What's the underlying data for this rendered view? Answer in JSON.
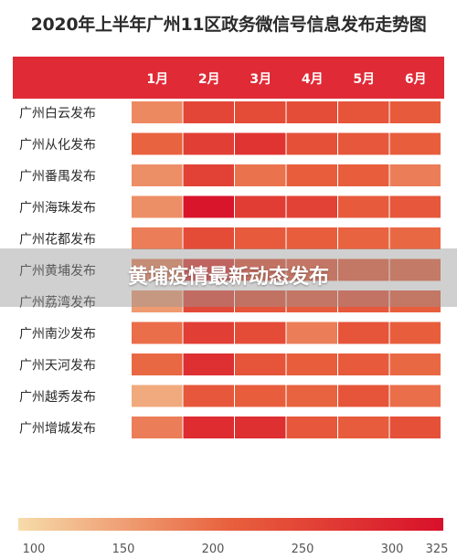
{
  "chart_data": {
    "type": "heatmap",
    "title": "2020年上半年广州11区政务微信号信息发布走势图",
    "columns": [
      "1月",
      "2月",
      "3月",
      "4月",
      "5月",
      "6月"
    ],
    "rows": [
      "广州白云发布",
      "广州从化发布",
      "广州番禺发布",
      "广州海珠发布",
      "广州花都发布",
      "广州黄埔发布",
      "广州荔湾发布",
      "广州南沙发布",
      "广州天河发布",
      "广州越秀发布",
      "广州增城发布"
    ],
    "values": [
      [
        175,
        250,
        240,
        238,
        230,
        220
      ],
      [
        210,
        260,
        275,
        235,
        225,
        215
      ],
      [
        170,
        255,
        195,
        215,
        215,
        185
      ],
      [
        170,
        318,
        262,
        255,
        220,
        225
      ],
      [
        185,
        240,
        220,
        215,
        210,
        205
      ],
      [
        180,
        265,
        230,
        220,
        215,
        210
      ],
      [
        160,
        245,
        230,
        220,
        225,
        215
      ],
      [
        200,
        260,
        240,
        185,
        230,
        215
      ],
      [
        205,
        280,
        230,
        215,
        220,
        205
      ],
      [
        145,
        225,
        215,
        210,
        230,
        200
      ],
      [
        185,
        285,
        282,
        225,
        218,
        235
      ]
    ],
    "color_scale": {
      "min": 100,
      "max": 325,
      "ticks": [
        100,
        150,
        200,
        250,
        300,
        325
      ],
      "colors": [
        "#f6dcaa",
        "#e8603d",
        "#d8102a"
      ]
    },
    "header_color": "#e02a36"
  },
  "overlay": {
    "caption": "黄埔疫情最新动态发布"
  }
}
